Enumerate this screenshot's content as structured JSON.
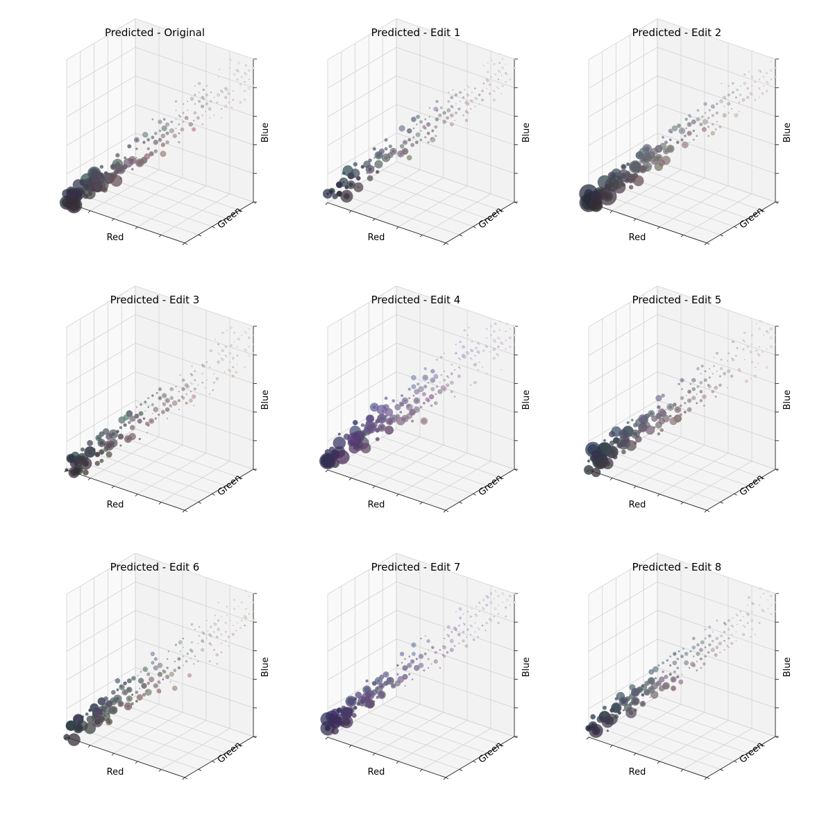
{
  "figure": {
    "background": "#ffffff",
    "grid_color": "#d2d2d2",
    "pane_colors": {
      "left": "#f9f9f9",
      "back": "#f2f2f2",
      "floor": "#f4f4f4"
    },
    "tick_count": 6
  },
  "chart_data": [
    {
      "type": "scatter",
      "subtype": "3d-color-histogram",
      "title": "Predicted - Original",
      "xlabel": "Red",
      "ylabel": "Green",
      "zlabel": "Blue",
      "xlim": [
        0,
        1
      ],
      "ylim": [
        0,
        1
      ],
      "zlim": [
        0,
        1
      ],
      "grid": true,
      "tint": "neutral",
      "warm_spread": 0.9,
      "blue_spread": 0.3,
      "dark_weight": 1.3
    },
    {
      "type": "scatter",
      "subtype": "3d-color-histogram",
      "title": "Predicted - Edit 1",
      "xlabel": "Red",
      "ylabel": "Green",
      "zlabel": "Blue",
      "xlim": [
        0,
        1
      ],
      "ylim": [
        0,
        1
      ],
      "zlim": [
        0,
        1
      ],
      "grid": true,
      "tint": "cool-blue",
      "warm_spread": 0.7,
      "blue_spread": 0.6,
      "dark_weight": 1.0
    },
    {
      "type": "scatter",
      "subtype": "3d-color-histogram",
      "title": "Predicted - Edit 2",
      "xlabel": "Red",
      "ylabel": "Green",
      "zlabel": "Blue",
      "xlim": [
        0,
        1
      ],
      "ylim": [
        0,
        1
      ],
      "zlim": [
        0,
        1
      ],
      "grid": true,
      "tint": "neutral",
      "warm_spread": 0.8,
      "blue_spread": 0.3,
      "dark_weight": 1.4
    },
    {
      "type": "scatter",
      "subtype": "3d-color-histogram",
      "title": "Predicted - Edit 3",
      "xlabel": "Red",
      "ylabel": "Green",
      "zlabel": "Blue",
      "xlim": [
        0,
        1
      ],
      "ylim": [
        0,
        1
      ],
      "zlim": [
        0,
        1
      ],
      "grid": true,
      "tint": "warm",
      "warm_spread": 1.0,
      "blue_spread": 0.4,
      "dark_weight": 1.0
    },
    {
      "type": "scatter",
      "subtype": "3d-color-histogram",
      "title": "Predicted - Edit 4",
      "xlabel": "Red",
      "ylabel": "Green",
      "zlabel": "Blue",
      "xlim": [
        0,
        1
      ],
      "ylim": [
        0,
        1
      ],
      "zlim": [
        0,
        1
      ],
      "grid": true,
      "tint": "violet",
      "warm_spread": 0.9,
      "blue_spread": 0.9,
      "dark_weight": 1.3
    },
    {
      "type": "scatter",
      "subtype": "3d-color-histogram",
      "title": "Predicted - Edit 5",
      "xlabel": "Red",
      "ylabel": "Green",
      "zlabel": "Blue",
      "xlim": [
        0,
        1
      ],
      "ylim": [
        0,
        1
      ],
      "zlim": [
        0,
        1
      ],
      "grid": true,
      "tint": "cool-blue",
      "warm_spread": 0.9,
      "blue_spread": 0.7,
      "dark_weight": 1.2
    },
    {
      "type": "scatter",
      "subtype": "3d-color-histogram",
      "title": "Predicted - Edit 6",
      "xlabel": "Red",
      "ylabel": "Green",
      "zlabel": "Blue",
      "xlim": [
        0,
        1
      ],
      "ylim": [
        0,
        1
      ],
      "zlim": [
        0,
        1
      ],
      "grid": true,
      "tint": "neutral",
      "warm_spread": 1.0,
      "blue_spread": 0.6,
      "dark_weight": 0.9
    },
    {
      "type": "scatter",
      "subtype": "3d-color-histogram",
      "title": "Predicted - Edit 7",
      "xlabel": "Red",
      "ylabel": "Green",
      "zlabel": "Blue",
      "xlim": [
        0,
        1
      ],
      "ylim": [
        0,
        1
      ],
      "zlim": [
        0,
        1
      ],
      "grid": true,
      "tint": "violet",
      "warm_spread": 0.6,
      "blue_spread": 0.7,
      "dark_weight": 1.0
    },
    {
      "type": "scatter",
      "subtype": "3d-color-histogram",
      "title": "Predicted - Edit 8",
      "xlabel": "Red",
      "ylabel": "Green",
      "zlabel": "Blue",
      "xlim": [
        0,
        1
      ],
      "ylim": [
        0,
        1
      ],
      "zlim": [
        0,
        1
      ],
      "grid": true,
      "tint": "cool-blue",
      "warm_spread": 0.8,
      "blue_spread": 0.5,
      "dark_weight": 1.0
    }
  ]
}
